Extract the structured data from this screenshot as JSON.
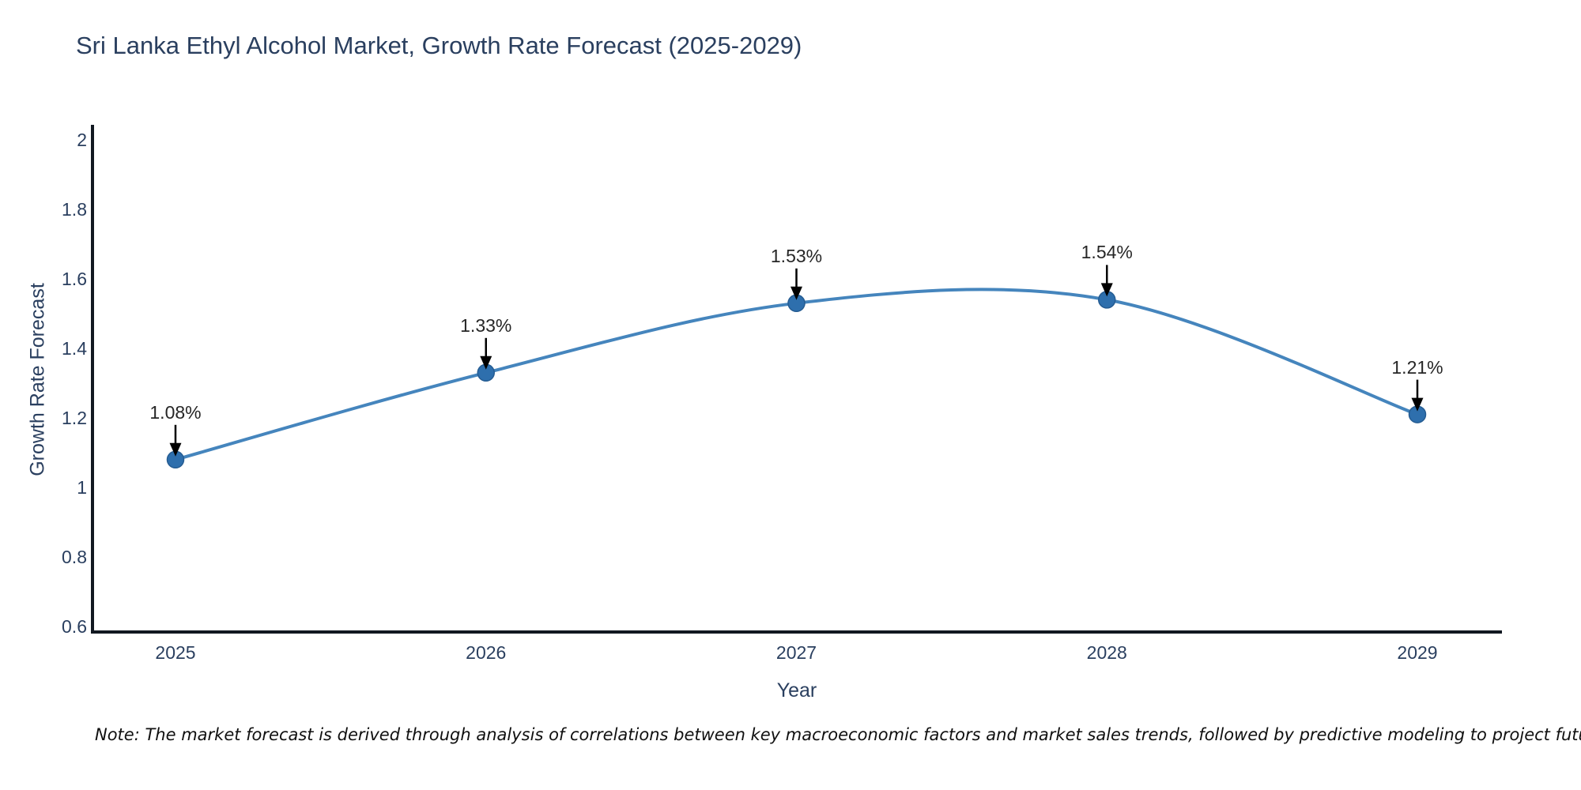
{
  "title": {
    "text": "Sri Lanka Ethyl Alcohol Market, Growth Rate Forecast (2025-2029)",
    "color": "#2a3f5f"
  },
  "chart_data": {
    "type": "line",
    "line_shape": "spline",
    "title": "Sri Lanka Ethyl Alcohol Market, Growth Rate Forecast (2025-2029)",
    "xlabel": "Year",
    "ylabel": "Growth Rate Forecast",
    "x": [
      2025,
      2026,
      2027,
      2028,
      2029
    ],
    "values": [
      1.08,
      1.33,
      1.53,
      1.54,
      1.21
    ],
    "point_labels": [
      "1.08%",
      "1.33%",
      "1.53%",
      "1.54%",
      "1.21%"
    ],
    "x_ticks": [
      "2025",
      "2026",
      "2027",
      "2028",
      "2029"
    ],
    "y_ticks": [
      "2",
      "1.8",
      "1.6",
      "1.4",
      "1.2",
      "1",
      "0.8",
      "0.6"
    ],
    "y_tick_values": [
      2,
      1.8,
      1.6,
      1.4,
      1.2,
      1,
      0.8,
      0.6
    ],
    "ylim": [
      0.58,
      2.04
    ],
    "grid": false,
    "legend": "none",
    "annotation_style": "black-arrow-pointing-down-to-marker",
    "colors": {
      "line": "#4585bd",
      "marker_fill": "#2e6fad",
      "marker_edge": "#255c92",
      "arrow": "#000000",
      "axis_line": "#111821",
      "tick_label": "#2a3f5f",
      "annotation_text": "#262626"
    }
  },
  "note": {
    "text": "Note: The market forecast is derived through analysis of correlations between key macroeconomic factors and market sales trends, followed by predictive modeling to project future sales"
  }
}
